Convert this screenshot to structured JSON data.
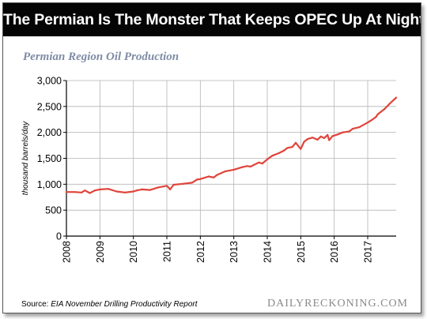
{
  "header": {
    "title": "The Permian Is The Monster That Keeps OPEC Up At Night!"
  },
  "chart_data": {
    "type": "line",
    "title": "Permian Region Oil Production",
    "ylabel": "thousand barrels/day",
    "xlabel": "",
    "ylim": [
      0,
      3000
    ],
    "xlim": [
      2008,
      2017.85
    ],
    "grid": true,
    "legend": "none",
    "line_color": "#e0443a",
    "yticks": [
      0,
      500,
      1000,
      1500,
      2000,
      2500,
      3000
    ],
    "ytick_labels": [
      "0",
      "500",
      "1,000",
      "1,500",
      "2,000",
      "2,500",
      "3,000"
    ],
    "xticks": [
      2008,
      2009,
      2010,
      2011,
      2012,
      2013,
      2014,
      2015,
      2016,
      2017
    ],
    "xtick_labels": [
      "2008",
      "2009",
      "2010",
      "2011",
      "2012",
      "2013",
      "2014",
      "2015",
      "2016",
      "2017"
    ],
    "series": [
      {
        "x": [
          2008.0,
          2008.25,
          2008.45,
          2008.55,
          2008.7,
          2008.85,
          2009.0,
          2009.25,
          2009.5,
          2009.75,
          2010.0,
          2010.1,
          2010.25,
          2010.5,
          2010.75,
          2011.0,
          2011.1,
          2011.2,
          2011.5,
          2011.75,
          2011.9,
          2012.0,
          2012.25,
          2012.4,
          2012.5,
          2012.75,
          2013.0,
          2013.25,
          2013.4,
          2013.5,
          2013.75,
          2013.85,
          2014.0,
          2014.15,
          2014.35,
          2014.5,
          2014.6,
          2014.75,
          2014.85,
          2015.0,
          2015.1,
          2015.2,
          2015.35,
          2015.5,
          2015.6,
          2015.7,
          2015.8,
          2015.85,
          2015.95,
          2016.1,
          2016.25,
          2016.45,
          2016.55,
          2016.75,
          2017.0,
          2017.1,
          2017.25,
          2017.3,
          2017.5,
          2017.65,
          2017.85
        ],
        "y": [
          850,
          850,
          840,
          880,
          830,
          880,
          900,
          910,
          860,
          840,
          860,
          880,
          900,
          890,
          940,
          970,
          900,
          990,
          1010,
          1030,
          1090,
          1100,
          1150,
          1130,
          1180,
          1250,
          1280,
          1330,
          1350,
          1340,
          1420,
          1400,
          1480,
          1550,
          1600,
          1650,
          1700,
          1720,
          1800,
          1680,
          1820,
          1870,
          1900,
          1860,
          1920,
          1890,
          1950,
          1850,
          1930,
          1960,
          2000,
          2020,
          2070,
          2100,
          2190,
          2230,
          2300,
          2350,
          2450,
          2550,
          2670
        ]
      }
    ]
  },
  "footer": {
    "source_prefix": "Source: ",
    "source_title": "EIA November Drilling Productivity Report",
    "brand": "DAILYRECKONING.COM"
  }
}
